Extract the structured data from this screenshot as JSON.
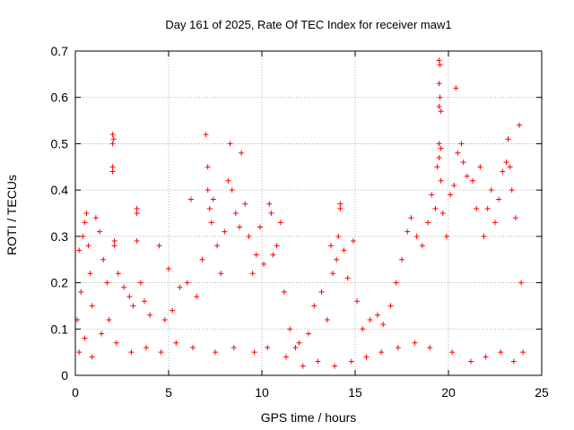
{
  "chart_data": {
    "type": "scatter",
    "title": "Day 161 of 2025, Rate Of TEC Index for receiver maw1",
    "xlabel": "GPS time / hours",
    "ylabel": "ROTI / TECUs",
    "xlim": [
      0,
      25
    ],
    "ylim": [
      0,
      0.7
    ],
    "xticks": [
      "0",
      "5",
      "10",
      "15",
      "20",
      "25"
    ],
    "yticks": [
      "0",
      "0.1",
      "0.2",
      "0.3",
      "0.4",
      "0.5",
      "0.6",
      "0.7"
    ],
    "grid": true,
    "marker": "+",
    "color": "#ff0000",
    "series": [
      {
        "points": [
          [
            0.1,
            0.12
          ],
          [
            0.2,
            0.27
          ],
          [
            0.3,
            0.18
          ],
          [
            0.4,
            0.3
          ],
          [
            0.5,
            0.33
          ],
          [
            0.6,
            0.35
          ],
          [
            0.7,
            0.28
          ],
          [
            0.8,
            0.22
          ],
          [
            0.9,
            0.15
          ],
          [
            1.1,
            0.34
          ],
          [
            1.3,
            0.31
          ],
          [
            1.5,
            0.25
          ],
          [
            1.7,
            0.2
          ],
          [
            1.8,
            0.12
          ],
          [
            2.0,
            0.52
          ],
          [
            2.05,
            0.51
          ],
          [
            2.0,
            0.5
          ],
          [
            2.0,
            0.45
          ],
          [
            2.0,
            0.44
          ],
          [
            2.1,
            0.29
          ],
          [
            2.1,
            0.28
          ],
          [
            2.3,
            0.22
          ],
          [
            2.6,
            0.19
          ],
          [
            2.9,
            0.17
          ],
          [
            3.1,
            0.15
          ],
          [
            3.3,
            0.36
          ],
          [
            3.3,
            0.35
          ],
          [
            3.3,
            0.29
          ],
          [
            3.5,
            0.2
          ],
          [
            3.7,
            0.16
          ],
          [
            4.0,
            0.13
          ],
          [
            4.5,
            0.28
          ],
          [
            4.8,
            0.12
          ],
          [
            5.0,
            0.23
          ],
          [
            5.2,
            0.14
          ],
          [
            5.6,
            0.19
          ],
          [
            6.0,
            0.2
          ],
          [
            6.2,
            0.38
          ],
          [
            6.5,
            0.17
          ],
          [
            6.8,
            0.25
          ],
          [
            7.0,
            0.52
          ],
          [
            7.1,
            0.45
          ],
          [
            7.1,
            0.4
          ],
          [
            7.2,
            0.36
          ],
          [
            7.3,
            0.33
          ],
          [
            7.4,
            0.38
          ],
          [
            7.6,
            0.28
          ],
          [
            7.8,
            0.22
          ],
          [
            8.0,
            0.31
          ],
          [
            8.2,
            0.42
          ],
          [
            8.3,
            0.5
          ],
          [
            8.4,
            0.4
          ],
          [
            8.6,
            0.35
          ],
          [
            8.8,
            0.32
          ],
          [
            8.9,
            0.48
          ],
          [
            9.1,
            0.37
          ],
          [
            9.3,
            0.3
          ],
          [
            9.5,
            0.22
          ],
          [
            9.7,
            0.26
          ],
          [
            9.9,
            0.32
          ],
          [
            10.1,
            0.24
          ],
          [
            10.4,
            0.37
          ],
          [
            10.5,
            0.35
          ],
          [
            10.6,
            0.26
          ],
          [
            10.8,
            0.28
          ],
          [
            11.0,
            0.33
          ],
          [
            11.2,
            0.18
          ],
          [
            11.5,
            0.1
          ],
          [
            11.8,
            0.06
          ],
          [
            12.0,
            0.07
          ],
          [
            12.5,
            0.09
          ],
          [
            12.8,
            0.15
          ],
          [
            13.2,
            0.18
          ],
          [
            13.5,
            0.12
          ],
          [
            13.7,
            0.28
          ],
          [
            13.8,
            0.22
          ],
          [
            14.0,
            0.25
          ],
          [
            14.1,
            0.3
          ],
          [
            14.2,
            0.37
          ],
          [
            14.2,
            0.36
          ],
          [
            14.4,
            0.27
          ],
          [
            14.6,
            0.21
          ],
          [
            14.9,
            0.29
          ],
          [
            15.1,
            0.16
          ],
          [
            15.4,
            0.1
          ],
          [
            15.8,
            0.12
          ],
          [
            16.2,
            0.13
          ],
          [
            16.5,
            0.11
          ],
          [
            16.9,
            0.15
          ],
          [
            17.2,
            0.2
          ],
          [
            17.5,
            0.25
          ],
          [
            17.8,
            0.31
          ],
          [
            18.0,
            0.34
          ],
          [
            18.3,
            0.3
          ],
          [
            18.6,
            0.28
          ],
          [
            18.9,
            0.33
          ],
          [
            19.1,
            0.39
          ],
          [
            19.3,
            0.36
          ],
          [
            19.5,
            0.68
          ],
          [
            19.55,
            0.67
          ],
          [
            19.5,
            0.63
          ],
          [
            19.55,
            0.6
          ],
          [
            19.5,
            0.58
          ],
          [
            19.6,
            0.57
          ],
          [
            19.5,
            0.5
          ],
          [
            19.6,
            0.49
          ],
          [
            19.5,
            0.47
          ],
          [
            19.4,
            0.45
          ],
          [
            19.6,
            0.42
          ],
          [
            19.7,
            0.35
          ],
          [
            19.9,
            0.3
          ],
          [
            20.1,
            0.39
          ],
          [
            20.3,
            0.41
          ],
          [
            20.4,
            0.62
          ],
          [
            20.5,
            0.48
          ],
          [
            20.7,
            0.5
          ],
          [
            20.8,
            0.46
          ],
          [
            21.0,
            0.43
          ],
          [
            21.3,
            0.42
          ],
          [
            21.5,
            0.36
          ],
          [
            21.7,
            0.45
          ],
          [
            21.9,
            0.3
          ],
          [
            22.1,
            0.36
          ],
          [
            22.3,
            0.4
          ],
          [
            22.5,
            0.33
          ],
          [
            22.7,
            0.38
          ],
          [
            22.9,
            0.44
          ],
          [
            23.1,
            0.46
          ],
          [
            23.2,
            0.51
          ],
          [
            23.3,
            0.45
          ],
          [
            23.4,
            0.4
          ],
          [
            23.6,
            0.34
          ],
          [
            23.8,
            0.54
          ],
          [
            23.9,
            0.2
          ],
          [
            24.0,
            0.05
          ],
          [
            0.2,
            0.05
          ],
          [
            0.5,
            0.08
          ],
          [
            0.9,
            0.04
          ],
          [
            1.4,
            0.09
          ],
          [
            2.2,
            0.07
          ],
          [
            3.0,
            0.05
          ],
          [
            3.8,
            0.06
          ],
          [
            4.6,
            0.05
          ],
          [
            5.4,
            0.07
          ],
          [
            6.3,
            0.06
          ],
          [
            7.5,
            0.05
          ],
          [
            8.5,
            0.06
          ],
          [
            9.6,
            0.05
          ],
          [
            10.3,
            0.06
          ],
          [
            11.3,
            0.04
          ],
          [
            12.2,
            0.02
          ],
          [
            13.0,
            0.03
          ],
          [
            13.9,
            0.02
          ],
          [
            14.8,
            0.03
          ],
          [
            15.6,
            0.04
          ],
          [
            16.4,
            0.05
          ],
          [
            17.3,
            0.06
          ],
          [
            18.2,
            0.07
          ],
          [
            19.0,
            0.06
          ],
          [
            20.2,
            0.05
          ],
          [
            21.2,
            0.03
          ],
          [
            22.0,
            0.04
          ],
          [
            22.8,
            0.05
          ],
          [
            23.5,
            0.03
          ]
        ]
      }
    ]
  }
}
